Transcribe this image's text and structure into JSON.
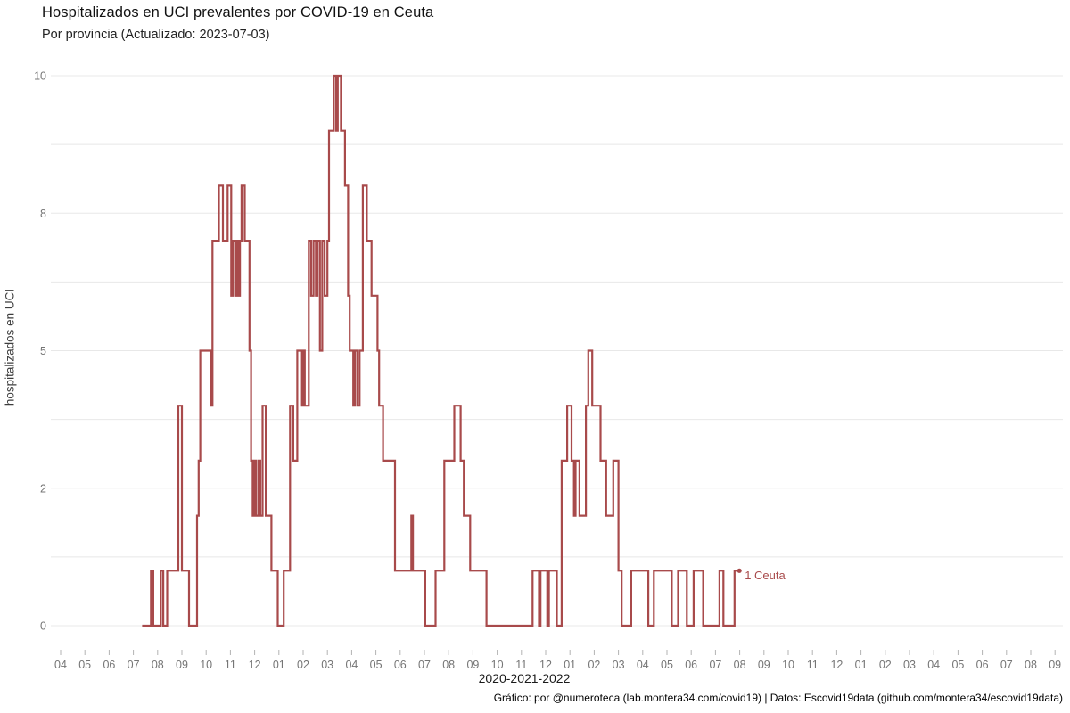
{
  "chart_data": {
    "type": "line",
    "line_style": "step-after",
    "title": "Hospitalizados en UCI prevalentes por COVID-19 en Ceuta",
    "subtitle": "Por provincia  (Actualizado: 2023-07-03)",
    "xlabel": "2020-2021-2022",
    "ylabel": "hospitalizados en UCI",
    "ylim": [
      0,
      10
    ],
    "grid": "horizontal",
    "y_gridlines": [
      0,
      1.25,
      2.5,
      3.75,
      5,
      6.25,
      7.5,
      8.75,
      10
    ],
    "y_ticks": [
      {
        "value": 0,
        "label": "0"
      },
      {
        "value": 2.5,
        "label": "2"
      },
      {
        "value": 5,
        "label": "5"
      },
      {
        "value": 7.5,
        "label": "8"
      },
      {
        "value": 10,
        "label": "10"
      }
    ],
    "x_range_months": [
      "2020-04",
      "2023-09"
    ],
    "x_tick_labels": [
      "04",
      "05",
      "06",
      "07",
      "08",
      "09",
      "10",
      "11",
      "12",
      "01",
      "02",
      "03",
      "04",
      "05",
      "06",
      "07",
      "08",
      "09",
      "10",
      "11",
      "12",
      "01",
      "02",
      "03",
      "04",
      "05",
      "06",
      "07",
      "08",
      "09",
      "10",
      "11",
      "12",
      "01",
      "02",
      "03",
      "04",
      "05",
      "06",
      "07",
      "08",
      "09"
    ],
    "legend_position": "end-of-line",
    "series": [
      {
        "name": "Ceuta",
        "color": "#a84a4b",
        "end_label": "1 Ceuta",
        "last_value": 1,
        "points": [
          [
            "2020-07-12",
            0
          ],
          [
            "2020-07-23",
            1
          ],
          [
            "2020-07-26",
            0
          ],
          [
            "2020-08-05",
            1
          ],
          [
            "2020-08-08",
            0
          ],
          [
            "2020-08-13",
            1
          ],
          [
            "2020-08-27",
            4
          ],
          [
            "2020-09-01",
            1
          ],
          [
            "2020-09-10",
            0
          ],
          [
            "2020-09-20",
            2
          ],
          [
            "2020-09-22",
            3
          ],
          [
            "2020-09-24",
            5
          ],
          [
            "2020-10-07",
            4
          ],
          [
            "2020-10-09",
            7
          ],
          [
            "2020-10-17",
            8
          ],
          [
            "2020-10-22",
            7
          ],
          [
            "2020-10-28",
            8
          ],
          [
            "2020-11-02",
            6
          ],
          [
            "2020-11-04",
            7
          ],
          [
            "2020-11-07",
            6
          ],
          [
            "2020-11-09",
            7
          ],
          [
            "2020-11-11",
            6
          ],
          [
            "2020-11-13",
            7
          ],
          [
            "2020-11-15",
            8
          ],
          [
            "2020-11-19",
            7
          ],
          [
            "2020-11-25",
            5
          ],
          [
            "2020-11-27",
            3
          ],
          [
            "2020-11-29",
            2
          ],
          [
            "2020-12-01",
            3
          ],
          [
            "2020-12-03",
            2
          ],
          [
            "2020-12-06",
            3
          ],
          [
            "2020-12-08",
            2
          ],
          [
            "2020-12-11",
            4
          ],
          [
            "2020-12-15",
            2
          ],
          [
            "2020-12-22",
            1
          ],
          [
            "2020-12-30",
            0
          ],
          [
            "2021-01-07",
            1
          ],
          [
            "2021-01-15",
            4
          ],
          [
            "2021-01-19",
            3
          ],
          [
            "2021-01-24",
            5
          ],
          [
            "2021-01-30",
            4
          ],
          [
            "2021-02-01",
            5
          ],
          [
            "2021-02-03",
            4
          ],
          [
            "2021-02-08",
            7
          ],
          [
            "2021-02-11",
            6
          ],
          [
            "2021-02-14",
            7
          ],
          [
            "2021-02-17",
            6
          ],
          [
            "2021-02-19",
            7
          ],
          [
            "2021-02-22",
            5
          ],
          [
            "2021-02-25",
            7
          ],
          [
            "2021-02-28",
            6
          ],
          [
            "2021-03-01",
            7
          ],
          [
            "2021-03-03",
            9
          ],
          [
            "2021-03-09",
            10
          ],
          [
            "2021-03-12",
            9
          ],
          [
            "2021-03-14",
            10
          ],
          [
            "2021-03-18",
            9
          ],
          [
            "2021-03-23",
            8
          ],
          [
            "2021-03-27",
            6
          ],
          [
            "2021-03-29",
            5
          ],
          [
            "2021-04-03",
            4
          ],
          [
            "2021-04-05",
            5
          ],
          [
            "2021-04-08",
            4
          ],
          [
            "2021-04-11",
            5
          ],
          [
            "2021-04-15",
            8
          ],
          [
            "2021-04-20",
            7
          ],
          [
            "2021-04-26",
            6
          ],
          [
            "2021-05-03",
            5
          ],
          [
            "2021-05-05",
            4
          ],
          [
            "2021-05-10",
            3
          ],
          [
            "2021-05-25",
            1
          ],
          [
            "2021-06-15",
            2
          ],
          [
            "2021-06-17",
            1
          ],
          [
            "2021-07-02",
            0
          ],
          [
            "2021-07-15",
            1
          ],
          [
            "2021-07-26",
            3
          ],
          [
            "2021-08-08",
            4
          ],
          [
            "2021-08-16",
            3
          ],
          [
            "2021-08-20",
            2
          ],
          [
            "2021-08-28",
            1
          ],
          [
            "2021-09-18",
            0
          ],
          [
            "2021-11-15",
            1
          ],
          [
            "2021-11-23",
            0
          ],
          [
            "2021-11-25",
            1
          ],
          [
            "2021-12-03",
            0
          ],
          [
            "2021-12-05",
            1
          ],
          [
            "2021-12-15",
            0
          ],
          [
            "2021-12-21",
            3
          ],
          [
            "2021-12-28",
            4
          ],
          [
            "2022-01-03",
            3
          ],
          [
            "2022-01-06",
            2
          ],
          [
            "2022-01-08",
            3
          ],
          [
            "2022-01-13",
            2
          ],
          [
            "2022-01-21",
            4
          ],
          [
            "2022-01-24",
            5
          ],
          [
            "2022-01-29",
            4
          ],
          [
            "2022-02-09",
            3
          ],
          [
            "2022-02-16",
            2
          ],
          [
            "2022-02-25",
            3
          ],
          [
            "2022-03-01",
            1
          ],
          [
            "2022-03-05",
            0
          ],
          [
            "2022-03-17",
            1
          ],
          [
            "2022-04-08",
            0
          ],
          [
            "2022-04-15",
            1
          ],
          [
            "2022-05-07",
            0
          ],
          [
            "2022-05-15",
            1
          ],
          [
            "2022-05-26",
            0
          ],
          [
            "2022-06-04",
            1
          ],
          [
            "2022-06-16",
            0
          ],
          [
            "2022-07-06",
            1
          ],
          [
            "2022-07-11",
            0
          ],
          [
            "2022-07-25",
            1
          ],
          [
            "2022-07-31",
            1
          ]
        ]
      }
    ]
  },
  "footer": "Gráfico: por @numeroteca (lab.montera34.com/covid19) | Datos: Escovid19data (github.com/montera34/escovid19data)",
  "colors": {
    "line": "#a84a4b",
    "gridline": "#e8e8e8",
    "tick_text": "#757575",
    "tick_mark": "#b3b3b3",
    "title": "#111111",
    "background": "#ffffff"
  }
}
